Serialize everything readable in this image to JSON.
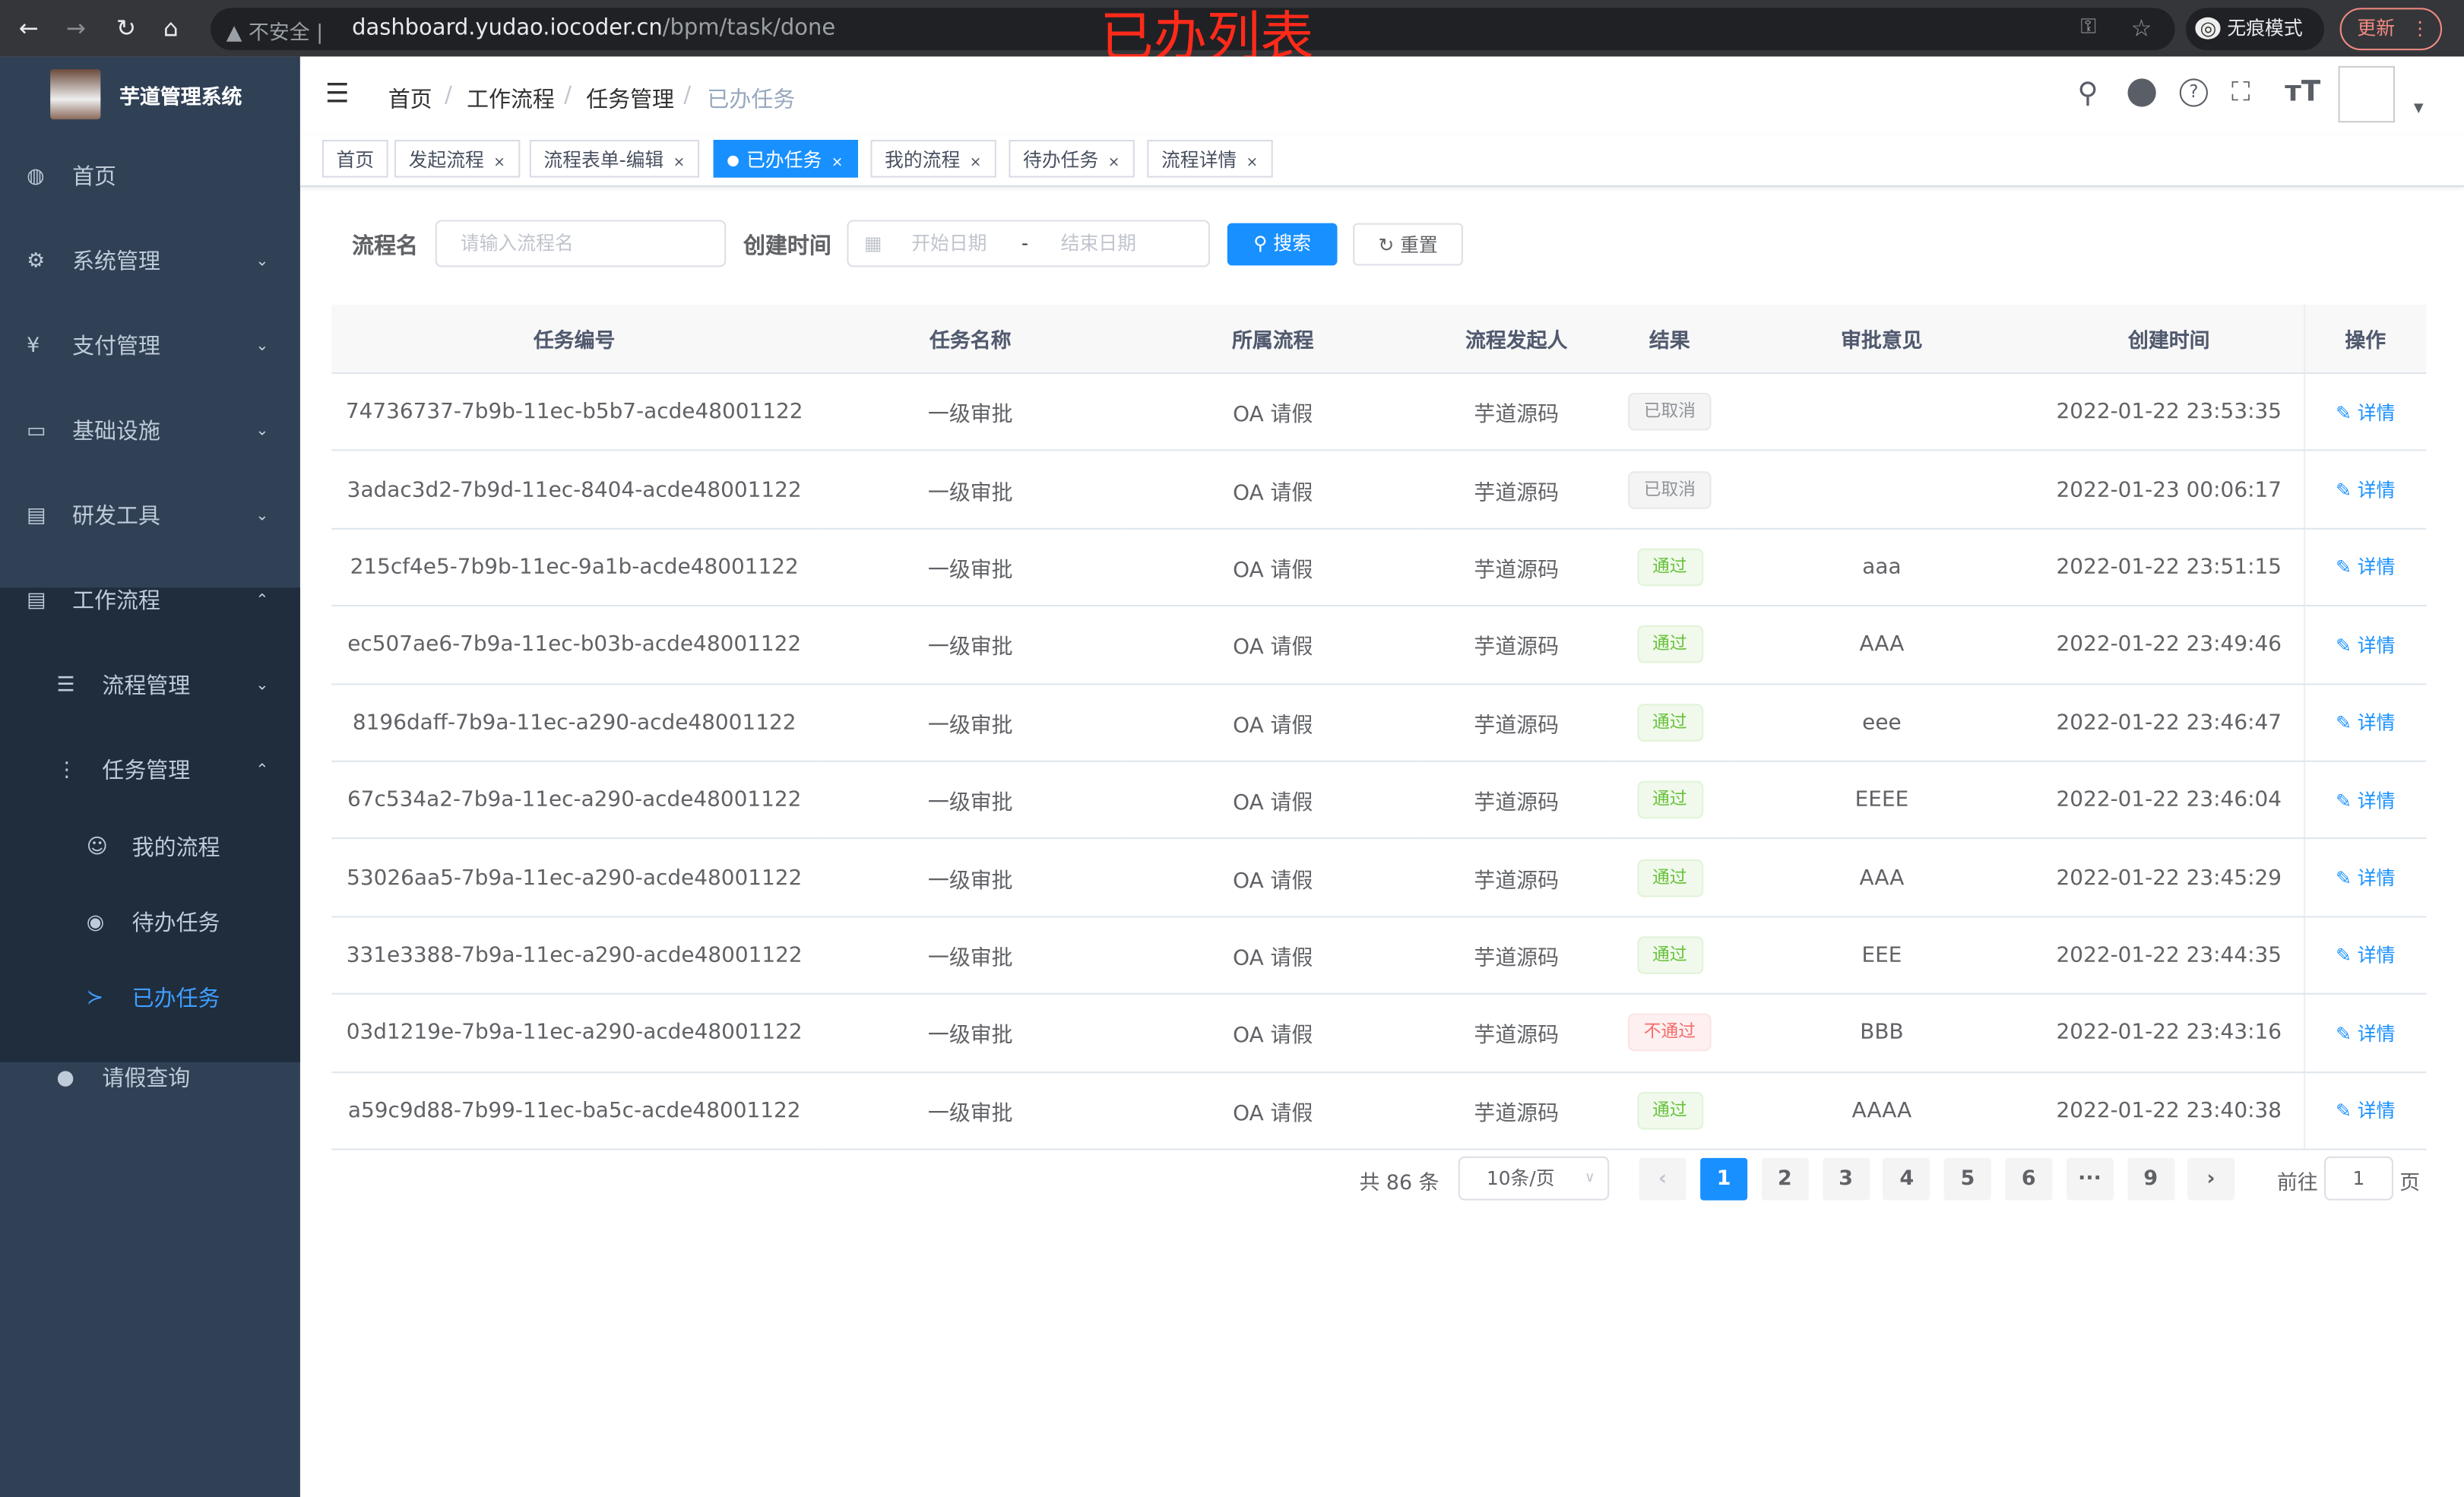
{
  "browser": {
    "insecure": "不安全",
    "url_host": "dashboard.yudao.iocoder.cn",
    "url_path": "/bpm/task/done",
    "incognito": "无痕模式",
    "update": "更新",
    "overlay_title": "已办列表"
  },
  "sidebar": {
    "title": "芋道管理系统",
    "items": [
      {
        "label": "首页",
        "icon": "dashboard-icon"
      },
      {
        "label": "系统管理",
        "icon": "gear-icon"
      },
      {
        "label": "支付管理",
        "icon": "yen-icon"
      },
      {
        "label": "基础设施",
        "icon": "monitor-icon"
      },
      {
        "label": "研发工具",
        "icon": "toolbox-icon"
      },
      {
        "label": "工作流程",
        "icon": "toolbox-icon"
      },
      {
        "label": "流程管理",
        "icon": "list-icon"
      },
      {
        "label": "任务管理",
        "icon": "tree-icon"
      },
      {
        "label": "我的流程",
        "icon": "chat-icon"
      },
      {
        "label": "待办任务",
        "icon": "eye-icon"
      },
      {
        "label": "已办任务",
        "icon": "fish-icon"
      },
      {
        "label": "请假查询",
        "icon": "user-icon"
      }
    ]
  },
  "breadcrumb": [
    "首页",
    "工作流程",
    "任务管理",
    "已办任务"
  ],
  "tags": [
    "首页",
    "发起流程",
    "流程表单-编辑",
    "已办任务",
    "我的流程",
    "待办任务",
    "流程详情"
  ],
  "search": {
    "name_label": "流程名",
    "name_placeholder": "请输入流程名",
    "time_label": "创建时间",
    "start_placeholder": "开始日期",
    "range_sep": "-",
    "end_placeholder": "结束日期",
    "search_btn": "搜索",
    "reset_btn": "重置"
  },
  "table": {
    "columns": [
      "任务编号",
      "任务名称",
      "所属流程",
      "流程发起人",
      "结果",
      "审批意见",
      "创建时间",
      "操作"
    ],
    "rows": [
      [
        "74736737-7b9b-11ec-b5b7-acde48001122",
        "一级审批",
        "OA 请假",
        "芋道源码",
        "已取消",
        "",
        "2022-01-22 23:53:35",
        "详情"
      ],
      [
        "3adac3d2-7b9d-11ec-8404-acde48001122",
        "一级审批",
        "OA 请假",
        "芋道源码",
        "已取消",
        "",
        "2022-01-23 00:06:17",
        "详情"
      ],
      [
        "215cf4e5-7b9b-11ec-9a1b-acde48001122",
        "一级审批",
        "OA 请假",
        "芋道源码",
        "通过",
        "aaa",
        "2022-01-22 23:51:15",
        "详情"
      ],
      [
        "ec507ae6-7b9a-11ec-b03b-acde48001122",
        "一级审批",
        "OA 请假",
        "芋道源码",
        "通过",
        "AAA",
        "2022-01-22 23:49:46",
        "详情"
      ],
      [
        "8196daff-7b9a-11ec-a290-acde48001122",
        "一级审批",
        "OA 请假",
        "芋道源码",
        "通过",
        "eee",
        "2022-01-22 23:46:47",
        "详情"
      ],
      [
        "67c534a2-7b9a-11ec-a290-acde48001122",
        "一级审批",
        "OA 请假",
        "芋道源码",
        "通过",
        "EEEE",
        "2022-01-22 23:46:04",
        "详情"
      ],
      [
        "53026aa5-7b9a-11ec-a290-acde48001122",
        "一级审批",
        "OA 请假",
        "芋道源码",
        "通过",
        "AAA",
        "2022-01-22 23:45:29",
        "详情"
      ],
      [
        "331e3388-7b9a-11ec-a290-acde48001122",
        "一级审批",
        "OA 请假",
        "芋道源码",
        "通过",
        "EEE",
        "2022-01-22 23:44:35",
        "详情"
      ],
      [
        "03d1219e-7b9a-11ec-a290-acde48001122",
        "一级审批",
        "OA 请假",
        "芋道源码",
        "不通过",
        "BBB",
        "2022-01-22 23:43:16",
        "详情"
      ],
      [
        "a59c9d88-7b99-11ec-ba5c-acde48001122",
        "一级审批",
        "OA 请假",
        "芋道源码",
        "通过",
        "AAAA",
        "2022-01-22 23:40:38",
        "详情"
      ]
    ]
  },
  "pagination": {
    "total": "共 86 条",
    "page_size": "10条/页",
    "pages": [
      "1",
      "2",
      "3",
      "4",
      "5",
      "6",
      "···",
      "9"
    ],
    "current": "1",
    "goto_label": "前往",
    "goto_value": "1",
    "goto_suffix": "页"
  }
}
